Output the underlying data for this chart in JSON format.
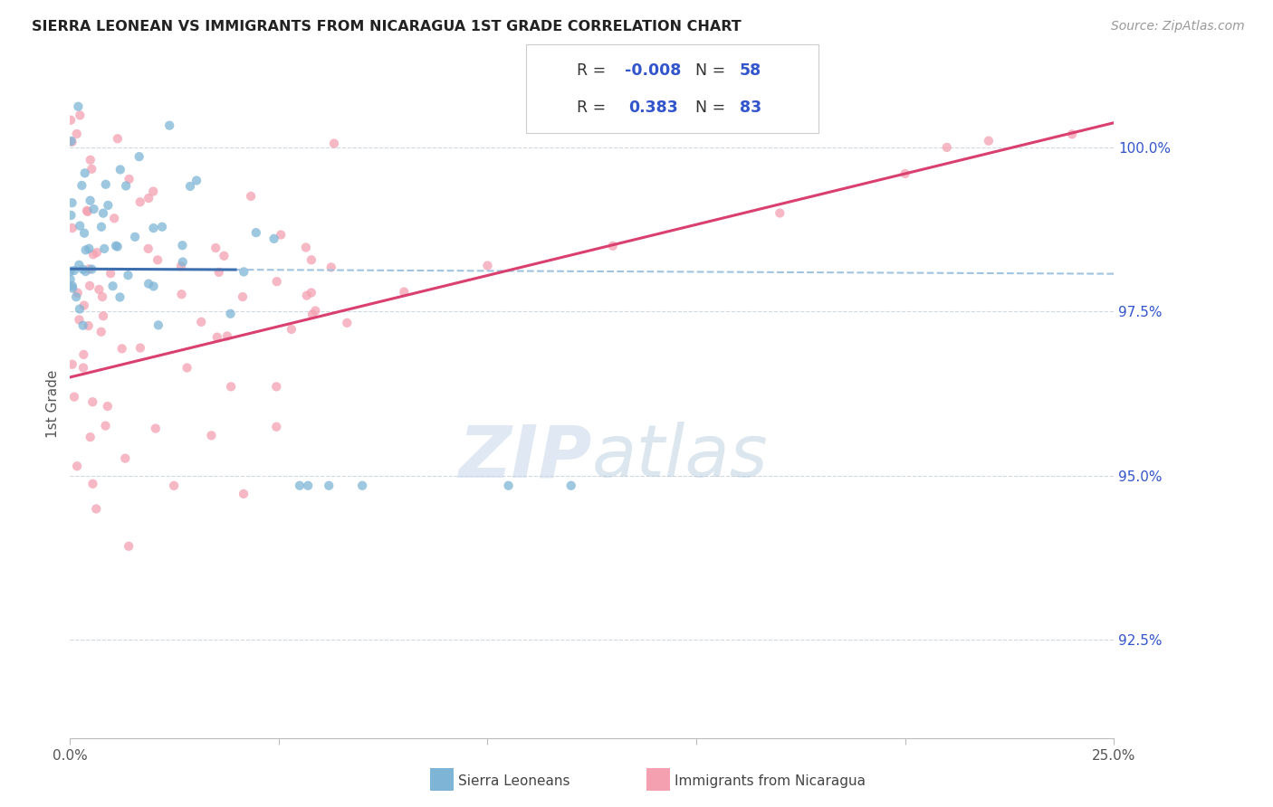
{
  "title": "SIERRA LEONEAN VS IMMIGRANTS FROM NICARAGUA 1ST GRADE CORRELATION CHART",
  "source": "Source: ZipAtlas.com",
  "ylabel": "1st Grade",
  "ytick_values": [
    92.5,
    95.0,
    97.5,
    100.0
  ],
  "xmin": 0.0,
  "xmax": 25.0,
  "ymin": 91.0,
  "ymax": 101.2,
  "legend_label1": "Sierra Leoneans",
  "legend_label2": "Immigrants from Nicaragua",
  "R1": "-0.008",
  "N1": "58",
  "R2": "0.383",
  "N2": "83",
  "blue_color": "#7EB5D6",
  "pink_color": "#F4A0B0",
  "blue_line_color": "#3D6FAF",
  "pink_line_color": "#D94070",
  "blue_dashed_color": "#A0C4E0",
  "text_blue": "#3355CC",
  "background_color": "#FFFFFF",
  "grid_color": "#D0D8E0",
  "blue_intercept": 98.15,
  "blue_slope": -0.003,
  "pink_intercept": 96.5,
  "pink_slope": 0.155
}
